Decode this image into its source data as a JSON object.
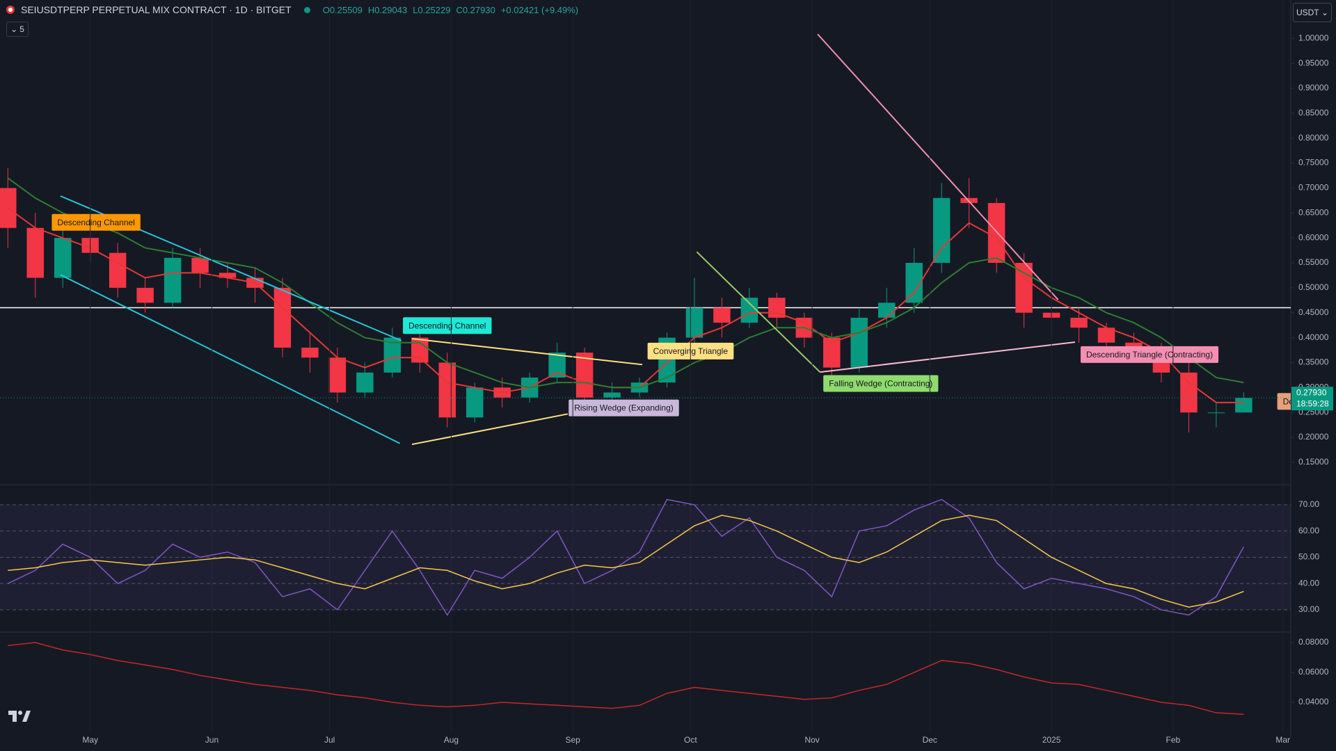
{
  "header": {
    "symbol": "SEIUSDTPERP PERPETUAL MIX CONTRACT · 1D · BITGET",
    "ohlc": [
      "O0.25509",
      "H0.29043",
      "L0.25229",
      "C0.27930",
      "+0.02421 (+9.49%)"
    ],
    "indicator_count": "5",
    "currency": "USDT"
  },
  "chart_data": [
    {
      "type": "candlestick",
      "x": [
        -21,
        -14,
        -7,
        0,
        7,
        14,
        21,
        28,
        35,
        42,
        49,
        56,
        63,
        70,
        77,
        84,
        91,
        98,
        105,
        112,
        119,
        126,
        133,
        140,
        147,
        154,
        161,
        168,
        175,
        182,
        189,
        196,
        203,
        210,
        217,
        224,
        231,
        238,
        245,
        252,
        259,
        266,
        273,
        280,
        287,
        294
      ],
      "open": [
        0.7,
        0.62,
        0.52,
        0.6,
        0.57,
        0.5,
        0.47,
        0.56,
        0.53,
        0.52,
        0.5,
        0.38,
        0.36,
        0.29,
        0.33,
        0.4,
        0.35,
        0.24,
        0.3,
        0.28,
        0.32,
        0.37,
        0.28,
        0.29,
        0.31,
        0.4,
        0.46,
        0.43,
        0.48,
        0.44,
        0.4,
        0.34,
        0.44,
        0.47,
        0.55,
        0.68,
        0.67,
        0.55,
        0.45,
        0.44,
        0.42,
        0.39,
        0.37,
        0.33,
        0.25,
        0.25
      ],
      "high": [
        0.74,
        0.65,
        0.62,
        0.63,
        0.59,
        0.52,
        0.58,
        0.58,
        0.55,
        0.54,
        0.52,
        0.41,
        0.38,
        0.35,
        0.42,
        0.41,
        0.37,
        0.31,
        0.32,
        0.33,
        0.39,
        0.38,
        0.31,
        0.32,
        0.41,
        0.52,
        0.48,
        0.5,
        0.49,
        0.45,
        0.41,
        0.46,
        0.5,
        0.58,
        0.71,
        0.72,
        0.68,
        0.57,
        0.48,
        0.46,
        0.43,
        0.41,
        0.39,
        0.35,
        0.27,
        0.29043
      ],
      "low": [
        0.58,
        0.48,
        0.5,
        0.55,
        0.48,
        0.45,
        0.46,
        0.5,
        0.5,
        0.47,
        0.36,
        0.33,
        0.27,
        0.28,
        0.32,
        0.33,
        0.22,
        0.23,
        0.26,
        0.27,
        0.31,
        0.27,
        0.26,
        0.28,
        0.3,
        0.38,
        0.4,
        0.42,
        0.42,
        0.38,
        0.32,
        0.33,
        0.42,
        0.45,
        0.53,
        0.62,
        0.53,
        0.42,
        0.4,
        0.39,
        0.37,
        0.35,
        0.31,
        0.21,
        0.22,
        0.25229
      ],
      "close": [
        0.62,
        0.52,
        0.6,
        0.57,
        0.5,
        0.47,
        0.56,
        0.53,
        0.52,
        0.5,
        0.38,
        0.36,
        0.29,
        0.33,
        0.4,
        0.35,
        0.24,
        0.3,
        0.28,
        0.32,
        0.37,
        0.28,
        0.29,
        0.31,
        0.4,
        0.46,
        0.43,
        0.48,
        0.44,
        0.4,
        0.34,
        0.44,
        0.47,
        0.55,
        0.68,
        0.67,
        0.55,
        0.45,
        0.44,
        0.42,
        0.39,
        0.37,
        0.33,
        0.25,
        0.25,
        0.2793
      ],
      "up_color": "#089981",
      "down_color": "#f23645",
      "overlays": [
        {
          "color": "#e53935",
          "values": [
            0.66,
            0.62,
            0.6,
            0.58,
            0.55,
            0.52,
            0.53,
            0.53,
            0.52,
            0.51,
            0.46,
            0.41,
            0.36,
            0.34,
            0.36,
            0.36,
            0.31,
            0.3,
            0.29,
            0.3,
            0.33,
            0.31,
            0.3,
            0.3,
            0.35,
            0.4,
            0.42,
            0.45,
            0.45,
            0.43,
            0.39,
            0.41,
            0.44,
            0.49,
            0.58,
            0.63,
            0.6,
            0.52,
            0.48,
            0.45,
            0.42,
            0.4,
            0.37,
            0.31,
            0.27,
            0.27
          ]
        },
        {
          "color": "#2e7d32",
          "values": [
            0.72,
            0.68,
            0.65,
            0.63,
            0.61,
            0.58,
            0.57,
            0.56,
            0.55,
            0.54,
            0.51,
            0.47,
            0.43,
            0.4,
            0.39,
            0.39,
            0.35,
            0.33,
            0.31,
            0.3,
            0.31,
            0.31,
            0.3,
            0.3,
            0.32,
            0.35,
            0.37,
            0.4,
            0.42,
            0.42,
            0.4,
            0.41,
            0.43,
            0.46,
            0.51,
            0.55,
            0.56,
            0.53,
            0.5,
            0.48,
            0.45,
            0.43,
            0.4,
            0.36,
            0.32,
            0.31
          ]
        }
      ],
      "levels": [
        0.46
      ],
      "trend_lines": [
        {
          "color": "#f48fb1",
          "x": [
            185.4,
            246.7
          ],
          "y": [
            1.0085,
            0.476
          ]
        },
        {
          "color": "#26c6da",
          "x": [
            -7.6,
            79.3
          ],
          "y": [
            0.684,
            0.394
          ]
        },
        {
          "color": "#26c6da",
          "x": [
            -7.6,
            78.9
          ],
          "y": [
            0.526,
            0.188
          ]
        },
        {
          "color": "#ffe082",
          "x": [
            82,
            121.7
          ],
          "y": [
            0.186,
            0.247
          ]
        },
        {
          "color": "#ffe082",
          "x": [
            82,
            140.7
          ],
          "y": [
            0.398,
            0.346
          ]
        },
        {
          "color": "#9ccc65",
          "x": [
            154.6,
            186
          ],
          "y": [
            0.572,
            0.331
          ]
        },
        {
          "color": "#f8bbd0",
          "x": [
            186,
            251
          ],
          "y": [
            0.331,
            0.391
          ]
        }
      ],
      "pattern_labels": [
        {
          "text": "Descending Channel",
          "x": 1.5,
          "y": 0.63,
          "color": "#ff9800"
        },
        {
          "text": "Descending Channel",
          "x": 91,
          "y": 0.423,
          "color": "#1de9d6"
        },
        {
          "text": "Converging Triangle",
          "x": 153,
          "y": 0.372,
          "color": "#ffe082"
        },
        {
          "text": "Rising Wedge (Expanding)",
          "x": 136,
          "y": 0.258,
          "color": "#c9b8d9"
        },
        {
          "text": "Falling Wedge (Contracting)",
          "x": 201.5,
          "y": 0.307,
          "color": "#8fdb6d"
        },
        {
          "text": "Descending Triangle (Contracting)",
          "x": 270,
          "y": 0.365,
          "color": "#f48fb1"
        },
        {
          "text": "Descendin",
          "x": 309,
          "y": 0.271,
          "color": "#e8a07a"
        }
      ],
      "last_price": {
        "label": "0.27930",
        "countdown": "18:59:28"
      },
      "xlim": [
        -23,
        306
      ],
      "ylim": [
        0.115,
        1.077
      ],
      "xticks": [
        {
          "value": 0,
          "label": "May"
        },
        {
          "value": 31,
          "label": "Jun"
        },
        {
          "value": 61,
          "label": "Jul"
        },
        {
          "value": 92,
          "label": "Aug"
        },
        {
          "value": 123,
          "label": "Sep"
        },
        {
          "value": 153,
          "label": "Oct"
        },
        {
          "value": 184,
          "label": "Nov"
        },
        {
          "value": 214,
          "label": "Dec"
        },
        {
          "value": 245,
          "label": "2025"
        },
        {
          "value": 276,
          "label": "Feb"
        },
        {
          "value": 304,
          "label": "Mar"
        }
      ],
      "yticks": [
        {
          "value": 0.15,
          "label": "0.15000"
        },
        {
          "value": 0.2,
          "label": "0.20000"
        },
        {
          "value": 0.25,
          "label": "0.25000"
        },
        {
          "value": 0.3,
          "label": "0.30000"
        },
        {
          "value": 0.35,
          "label": "0.35000"
        },
        {
          "value": 0.4,
          "label": "0.40000"
        },
        {
          "value": 0.45,
          "label": "0.45000"
        },
        {
          "value": 0.5,
          "label": "0.50000"
        },
        {
          "value": 0.55,
          "label": "0.55000"
        },
        {
          "value": 0.6,
          "label": "0.60000"
        },
        {
          "value": 0.65,
          "label": "0.65000"
        },
        {
          "value": 0.7,
          "label": "0.70000"
        },
        {
          "value": 0.75,
          "label": "0.75000"
        },
        {
          "value": 0.8,
          "label": "0.80000"
        },
        {
          "value": 0.85,
          "label": "0.85000"
        },
        {
          "value": 0.9,
          "label": "0.90000"
        },
        {
          "value": 0.95,
          "label": "0.95000"
        },
        {
          "value": 1,
          "label": "1.00000"
        }
      ]
    },
    {
      "type": "line",
      "x": [
        -21,
        -14,
        -7,
        0,
        7,
        14,
        21,
        28,
        35,
        42,
        49,
        56,
        63,
        70,
        77,
        84,
        91,
        98,
        105,
        112,
        119,
        126,
        133,
        140,
        147,
        154,
        161,
        168,
        175,
        182,
        189,
        196,
        203,
        210,
        217,
        224,
        231,
        238,
        245,
        252,
        259,
        266,
        273,
        280,
        287,
        294
      ],
      "series": [
        {
          "color": "#7e57c2",
          "values": [
            40,
            45,
            55,
            50,
            40,
            45,
            55,
            50,
            52,
            48,
            35,
            38,
            30,
            45,
            60,
            45,
            28,
            45,
            42,
            50,
            60,
            40,
            45,
            52,
            72,
            70,
            58,
            65,
            50,
            45,
            35,
            60,
            62,
            68,
            72,
            65,
            48,
            38,
            42,
            40,
            38,
            35,
            30,
            28,
            35,
            54
          ]
        },
        {
          "color": "#f7c948",
          "values": [
            45,
            46,
            48,
            49,
            48,
            47,
            48,
            49,
            50,
            49,
            46,
            43,
            40,
            38,
            42,
            46,
            45,
            41,
            38,
            40,
            44,
            47,
            46,
            48,
            55,
            62,
            66,
            64,
            60,
            55,
            50,
            48,
            52,
            58,
            64,
            66,
            64,
            57,
            50,
            45,
            40,
            38,
            34,
            31,
            33,
            37
          ]
        }
      ],
      "band": true,
      "xlim": [
        -23,
        306
      ],
      "ylim": [
        22.3,
        75.8
      ],
      "yticks": [
        {
          "value": 30,
          "label": "30.00"
        },
        {
          "value": 40,
          "label": "40.00"
        },
        {
          "value": 50,
          "label": "50.00"
        },
        {
          "value": 60,
          "label": "60.00"
        },
        {
          "value": 70,
          "label": "70.00"
        }
      ]
    },
    {
      "type": "line",
      "x": [
        -21,
        -14,
        -7,
        0,
        7,
        14,
        21,
        28,
        35,
        42,
        49,
        56,
        63,
        70,
        77,
        84,
        91,
        98,
        105,
        112,
        119,
        126,
        133,
        140,
        147,
        154,
        161,
        168,
        175,
        182,
        189,
        196,
        203,
        210,
        217,
        224,
        231,
        238,
        245,
        252,
        259,
        266,
        273,
        280,
        287,
        294
      ],
      "series": [
        {
          "color": "#c62828",
          "values": [
            0.078,
            0.08,
            0.075,
            0.072,
            0.068,
            0.065,
            0.062,
            0.058,
            0.055,
            0.052,
            0.05,
            0.048,
            0.045,
            0.043,
            0.04,
            0.038,
            0.037,
            0.038,
            0.04,
            0.039,
            0.038,
            0.037,
            0.036,
            0.038,
            0.046,
            0.05,
            0.048,
            0.046,
            0.044,
            0.042,
            0.043,
            0.048,
            0.052,
            0.06,
            0.068,
            0.066,
            0.062,
            0.057,
            0.053,
            0.052,
            0.048,
            0.044,
            0.04,
            0.038,
            0.033,
            0.032
          ]
        }
      ],
      "xlim": [
        -23,
        306
      ],
      "ylim": [
        0.02,
        0.0856
      ],
      "yticks": [
        {
          "value": 0.04,
          "label": "0.04000"
        },
        {
          "value": 0.06,
          "label": "0.06000"
        },
        {
          "value": 0.08,
          "label": "0.08000"
        }
      ]
    }
  ]
}
